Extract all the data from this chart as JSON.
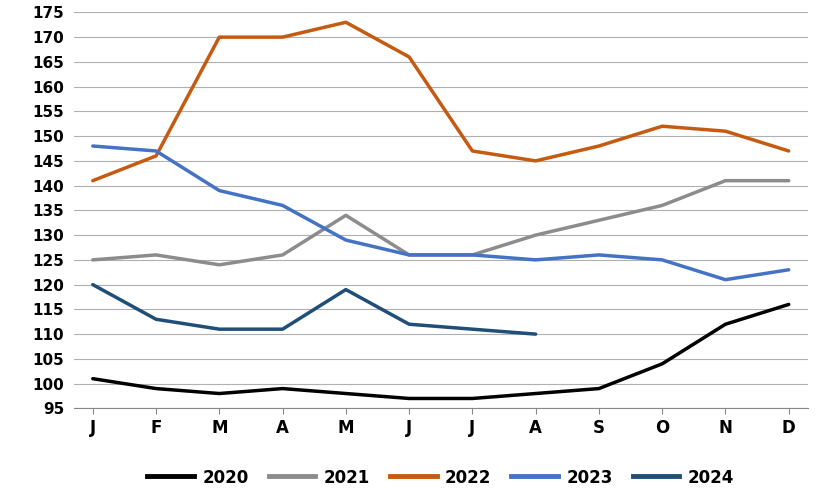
{
  "months": [
    "J",
    "F",
    "M",
    "A",
    "M",
    "J",
    "J",
    "A",
    "S",
    "O",
    "N",
    "D"
  ],
  "series": {
    "2020": [
      101,
      99,
      98,
      99,
      98,
      97,
      97,
      98,
      99,
      104,
      112,
      116
    ],
    "2021": [
      125,
      126,
      124,
      126,
      134,
      126,
      126,
      130,
      133,
      136,
      141,
      141
    ],
    "2022": [
      141,
      146,
      170,
      170,
      173,
      166,
      147,
      145,
      148,
      152,
      151,
      147
    ],
    "2023": [
      148,
      147,
      139,
      136,
      129,
      126,
      126,
      125,
      126,
      125,
      121,
      123
    ],
    "2024": [
      120,
      113,
      111,
      111,
      119,
      112,
      111,
      110,
      null,
      null,
      null,
      null
    ]
  },
  "colors": {
    "2020": "#000000",
    "2021": "#8c8c8c",
    "2022": "#c55a11",
    "2023": "#4472c4",
    "2024": "#1f4e79"
  },
  "ylim": [
    95,
    175
  ],
  "yticks": [
    95,
    100,
    105,
    110,
    115,
    120,
    125,
    130,
    135,
    140,
    145,
    150,
    155,
    160,
    165,
    170,
    175
  ],
  "background_color": "#ffffff",
  "grid_color": "#b0b0b0",
  "legend_order": [
    "2020",
    "2021",
    "2022",
    "2023",
    "2024"
  ]
}
